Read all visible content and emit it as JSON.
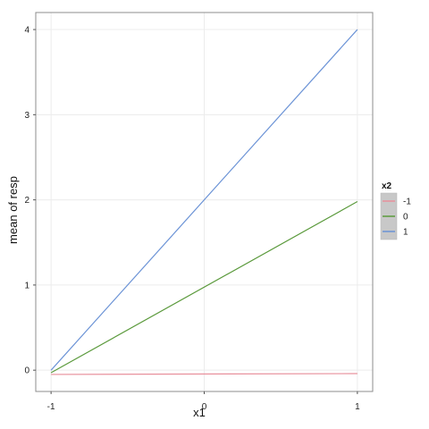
{
  "chart_data": {
    "type": "line",
    "xlabel": "x1",
    "ylabel": "mean of resp",
    "x": [
      -1,
      1
    ],
    "xticks": [
      "-1",
      "0",
      "1"
    ],
    "yticks": [
      "0",
      "1",
      "2",
      "3",
      "4"
    ],
    "xlim": [
      -1.1,
      1.1
    ],
    "ylim": [
      -0.25,
      4.2
    ],
    "grid": true,
    "legend": {
      "title": "x2",
      "position": "right"
    },
    "series": [
      {
        "name": "-1",
        "color": "#e8909c",
        "values": [
          -0.05,
          -0.04
        ]
      },
      {
        "name": "0",
        "color": "#5b9a3c",
        "values": [
          -0.03,
          1.98
        ]
      },
      {
        "name": "1",
        "color": "#6b93d6",
        "values": [
          0.0,
          4.0
        ]
      }
    ]
  }
}
